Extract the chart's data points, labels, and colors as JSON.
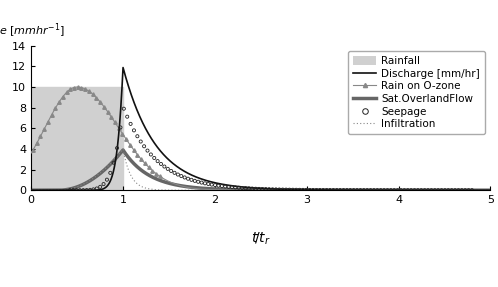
{
  "title": "",
  "ylabel_text": "e [mm/hr⁻¹]",
  "xlabel_text": "t/t_r",
  "xlim": [
    0,
    5
  ],
  "ylim": [
    0,
    14
  ],
  "yticks": [
    0,
    2,
    4,
    6,
    8,
    10,
    12,
    14
  ],
  "xticks": [
    0,
    1,
    2,
    3,
    4,
    5
  ],
  "background_color": "#ffffff",
  "rainfall_color": "#d0d0d0",
  "discharge_color": "#111111",
  "rain_ozone_color": "#888888",
  "sat_overland_color": "#666666",
  "seepage_color": "#222222",
  "infiltration_color": "#888888",
  "legend_fontsize": 7.5,
  "axis_fontsize": 8,
  "discharge_peak": 11.9,
  "discharge_peak_t": 1.0,
  "rain_ozone_peak": 10.0,
  "rain_ozone_peak_t": 0.5,
  "sat_overland_peak": 3.9,
  "sat_overland_peak_t": 1.0,
  "seepage_peak": 8.1,
  "seepage_peak_t": 1.0,
  "infiltration_peak": 4.0,
  "infiltration_peak_t": 1.0
}
